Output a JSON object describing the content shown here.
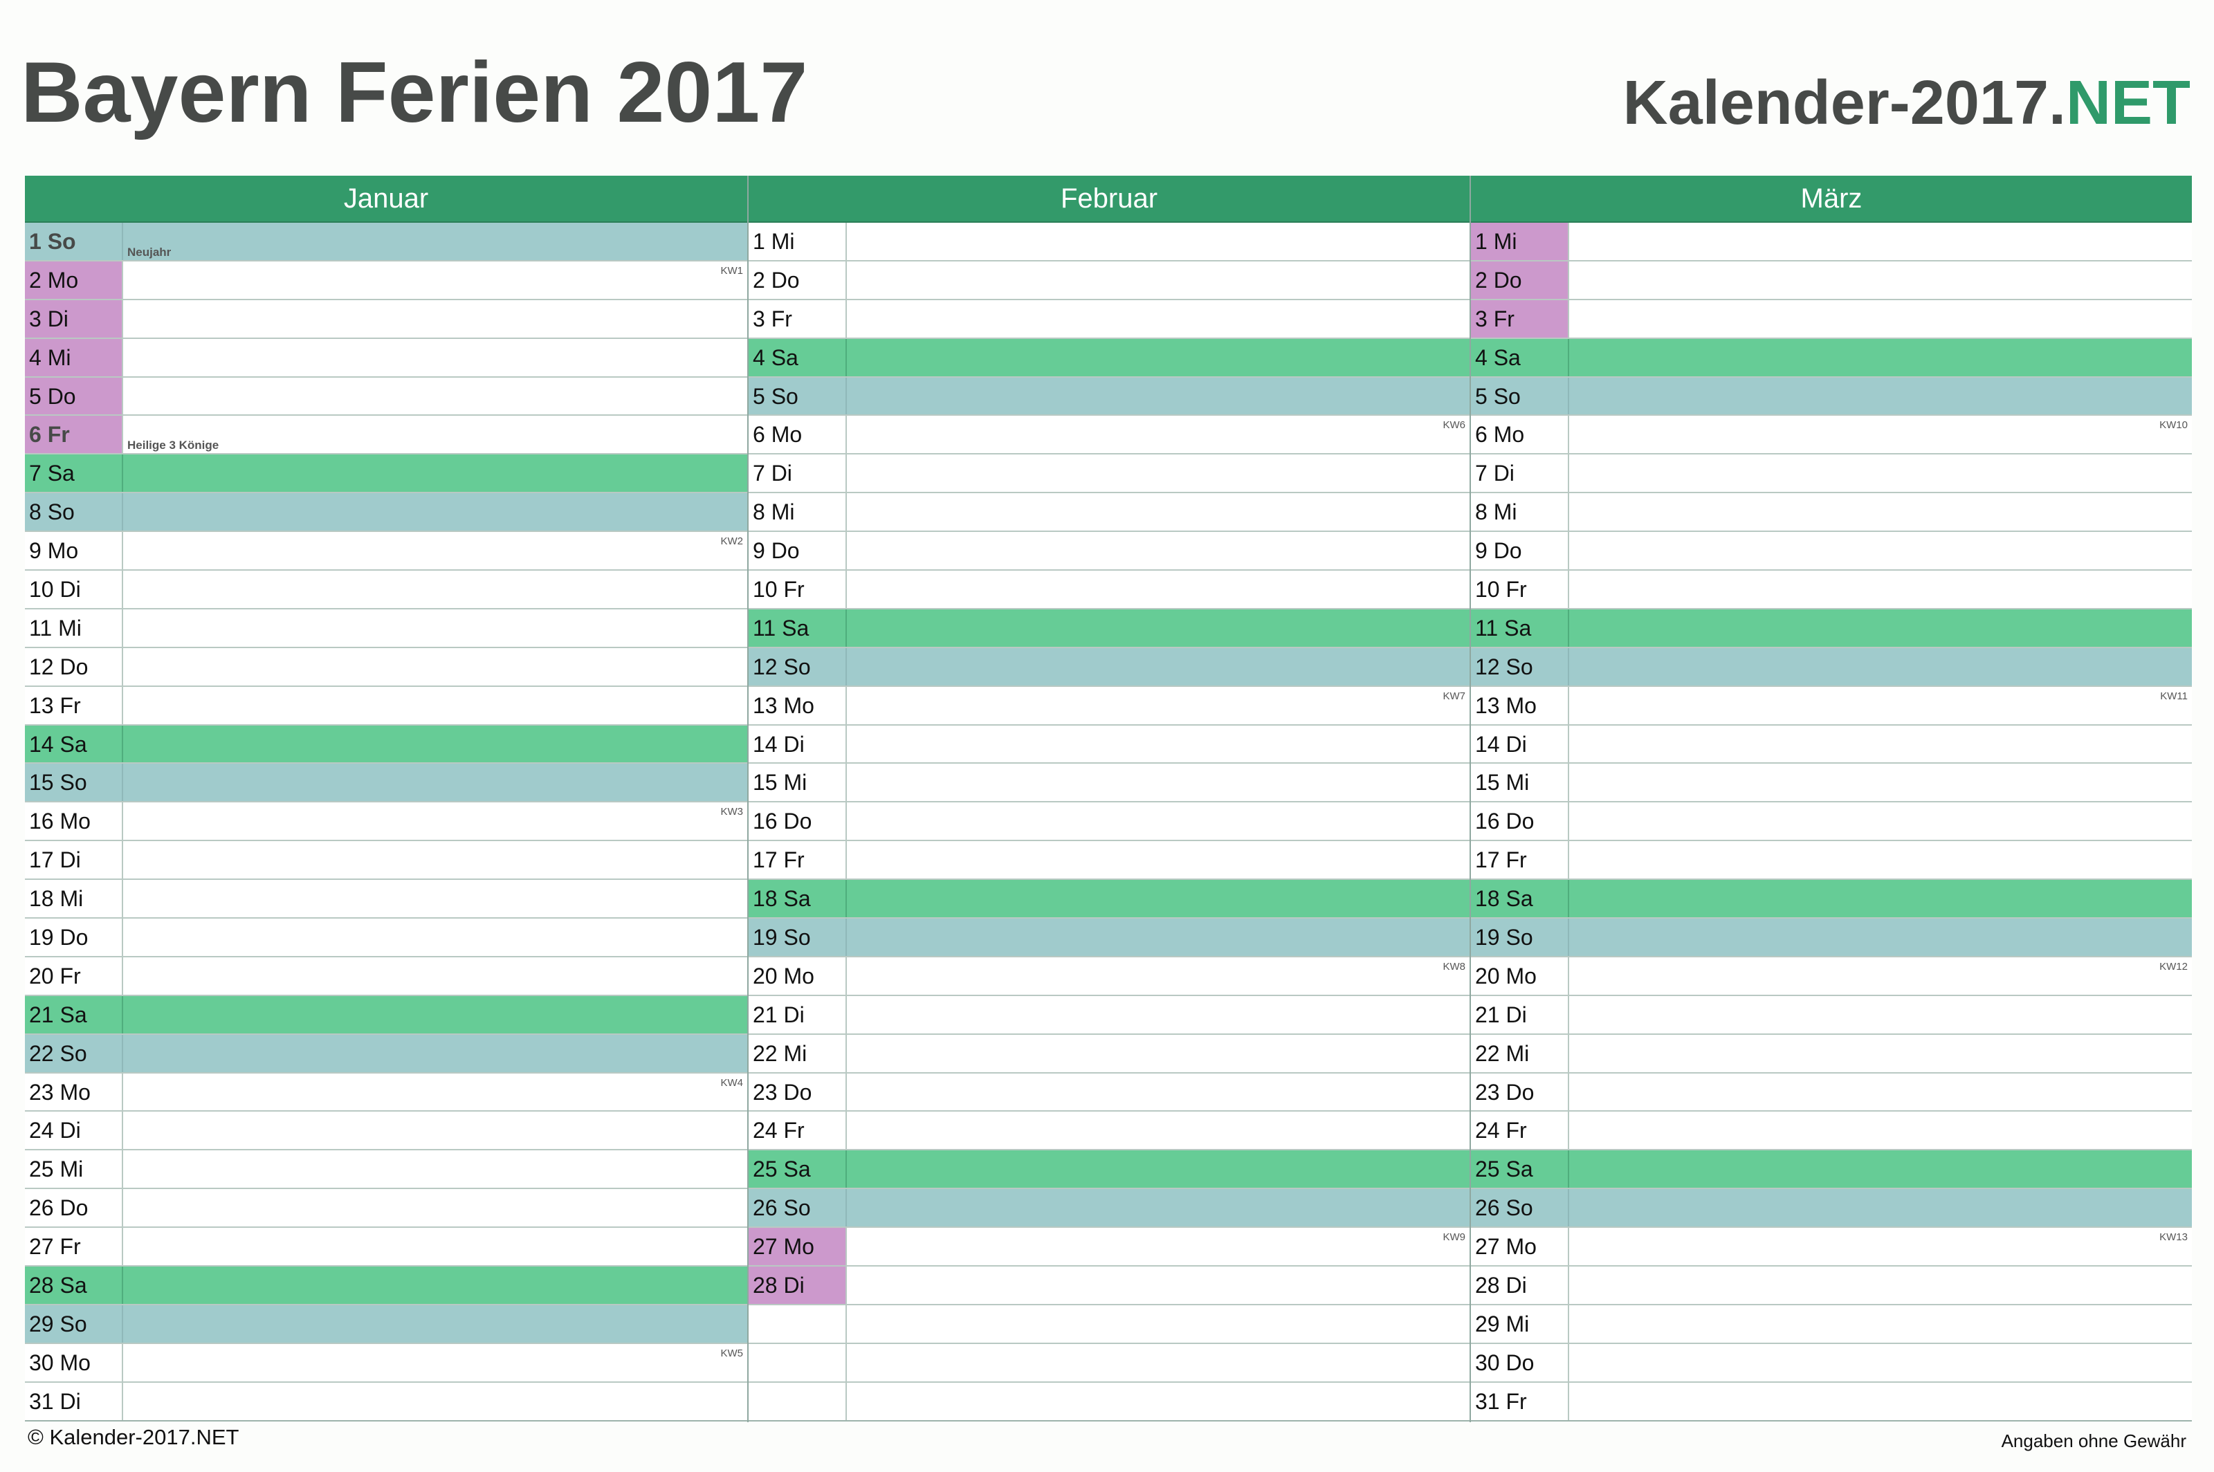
{
  "header": {
    "title": "Bayern Ferien 2017",
    "brand_main": "Kalender-2017.",
    "brand_tld": "NET"
  },
  "colors": {
    "header_green": "#339a6a",
    "saturday": "#66cc96",
    "sunday": "#a0cbcc",
    "school_holiday": "#cc99cc",
    "brand_accent": "#2f9a6a"
  },
  "months": [
    {
      "name": "Januar",
      "days": [
        {
          "label": "1 So",
          "type": "so",
          "holiday": "Neujahr",
          "public_holiday": true
        },
        {
          "label": "2 Mo",
          "type": "wd",
          "kw": "KW1",
          "ferien": true
        },
        {
          "label": "3 Di",
          "type": "wd",
          "ferien": true
        },
        {
          "label": "4 Mi",
          "type": "wd",
          "ferien": true
        },
        {
          "label": "5 Do",
          "type": "wd",
          "ferien": true
        },
        {
          "label": "6 Fr",
          "type": "wd",
          "holiday": "Heilige 3 Könige",
          "public_holiday": true,
          "ferien": true
        },
        {
          "label": "7 Sa",
          "type": "sa"
        },
        {
          "label": "8 So",
          "type": "so"
        },
        {
          "label": "9 Mo",
          "type": "wd",
          "kw": "KW2"
        },
        {
          "label": "10 Di",
          "type": "wd"
        },
        {
          "label": "11 Mi",
          "type": "wd"
        },
        {
          "label": "12 Do",
          "type": "wd"
        },
        {
          "label": "13 Fr",
          "type": "wd"
        },
        {
          "label": "14 Sa",
          "type": "sa"
        },
        {
          "label": "15 So",
          "type": "so"
        },
        {
          "label": "16 Mo",
          "type": "wd",
          "kw": "KW3"
        },
        {
          "label": "17 Di",
          "type": "wd"
        },
        {
          "label": "18 Mi",
          "type": "wd"
        },
        {
          "label": "19 Do",
          "type": "wd"
        },
        {
          "label": "20 Fr",
          "type": "wd"
        },
        {
          "label": "21 Sa",
          "type": "sa"
        },
        {
          "label": "22 So",
          "type": "so"
        },
        {
          "label": "23 Mo",
          "type": "wd",
          "kw": "KW4"
        },
        {
          "label": "24 Di",
          "type": "wd"
        },
        {
          "label": "25 Mi",
          "type": "wd"
        },
        {
          "label": "26 Do",
          "type": "wd"
        },
        {
          "label": "27 Fr",
          "type": "wd"
        },
        {
          "label": "28 Sa",
          "type": "sa"
        },
        {
          "label": "29 So",
          "type": "so"
        },
        {
          "label": "30 Mo",
          "type": "wd",
          "kw": "KW5"
        },
        {
          "label": "31 Di",
          "type": "wd"
        }
      ]
    },
    {
      "name": "Februar",
      "days": [
        {
          "label": "1 Mi",
          "type": "wd"
        },
        {
          "label": "2 Do",
          "type": "wd"
        },
        {
          "label": "3 Fr",
          "type": "wd"
        },
        {
          "label": "4 Sa",
          "type": "sa"
        },
        {
          "label": "5 So",
          "type": "so"
        },
        {
          "label": "6 Mo",
          "type": "wd",
          "kw": "KW6"
        },
        {
          "label": "7 Di",
          "type": "wd"
        },
        {
          "label": "8 Mi",
          "type": "wd"
        },
        {
          "label": "9 Do",
          "type": "wd"
        },
        {
          "label": "10 Fr",
          "type": "wd"
        },
        {
          "label": "11 Sa",
          "type": "sa"
        },
        {
          "label": "12 So",
          "type": "so"
        },
        {
          "label": "13 Mo",
          "type": "wd",
          "kw": "KW7"
        },
        {
          "label": "14 Di",
          "type": "wd"
        },
        {
          "label": "15 Mi",
          "type": "wd"
        },
        {
          "label": "16 Do",
          "type": "wd"
        },
        {
          "label": "17 Fr",
          "type": "wd"
        },
        {
          "label": "18 Sa",
          "type": "sa"
        },
        {
          "label": "19 So",
          "type": "so"
        },
        {
          "label": "20 Mo",
          "type": "wd",
          "kw": "KW8"
        },
        {
          "label": "21 Di",
          "type": "wd"
        },
        {
          "label": "22 Mi",
          "type": "wd"
        },
        {
          "label": "23 Do",
          "type": "wd"
        },
        {
          "label": "24 Fr",
          "type": "wd"
        },
        {
          "label": "25 Sa",
          "type": "sa"
        },
        {
          "label": "26 So",
          "type": "so"
        },
        {
          "label": "27 Mo",
          "type": "wd",
          "kw": "KW9",
          "ferien": true
        },
        {
          "label": "28 Di",
          "type": "wd",
          "ferien": true
        }
      ]
    },
    {
      "name": "März",
      "days": [
        {
          "label": "1 Mi",
          "type": "wd",
          "ferien": true
        },
        {
          "label": "2 Do",
          "type": "wd",
          "ferien": true
        },
        {
          "label": "3 Fr",
          "type": "wd",
          "ferien": true
        },
        {
          "label": "4 Sa",
          "type": "sa"
        },
        {
          "label": "5 So",
          "type": "so"
        },
        {
          "label": "6 Mo",
          "type": "wd",
          "kw": "KW10"
        },
        {
          "label": "7 Di",
          "type": "wd"
        },
        {
          "label": "8 Mi",
          "type": "wd"
        },
        {
          "label": "9 Do",
          "type": "wd"
        },
        {
          "label": "10 Fr",
          "type": "wd"
        },
        {
          "label": "11 Sa",
          "type": "sa"
        },
        {
          "label": "12 So",
          "type": "so"
        },
        {
          "label": "13 Mo",
          "type": "wd",
          "kw": "KW11"
        },
        {
          "label": "14 Di",
          "type": "wd"
        },
        {
          "label": "15 Mi",
          "type": "wd"
        },
        {
          "label": "16 Do",
          "type": "wd"
        },
        {
          "label": "17 Fr",
          "type": "wd"
        },
        {
          "label": "18 Sa",
          "type": "sa"
        },
        {
          "label": "19 So",
          "type": "so"
        },
        {
          "label": "20 Mo",
          "type": "wd",
          "kw": "KW12"
        },
        {
          "label": "21 Di",
          "type": "wd"
        },
        {
          "label": "22 Mi",
          "type": "wd"
        },
        {
          "label": "23 Do",
          "type": "wd"
        },
        {
          "label": "24 Fr",
          "type": "wd"
        },
        {
          "label": "25 Sa",
          "type": "sa"
        },
        {
          "label": "26 So",
          "type": "so"
        },
        {
          "label": "27 Mo",
          "type": "wd",
          "kw": "KW13"
        },
        {
          "label": "28 Di",
          "type": "wd"
        },
        {
          "label": "29 Mi",
          "type": "wd"
        },
        {
          "label": "30 Do",
          "type": "wd"
        },
        {
          "label": "31 Fr",
          "type": "wd"
        }
      ]
    }
  ],
  "footer": {
    "copyright": "© Kalender-2017.NET",
    "disclaimer": "Angaben ohne Gewähr"
  }
}
